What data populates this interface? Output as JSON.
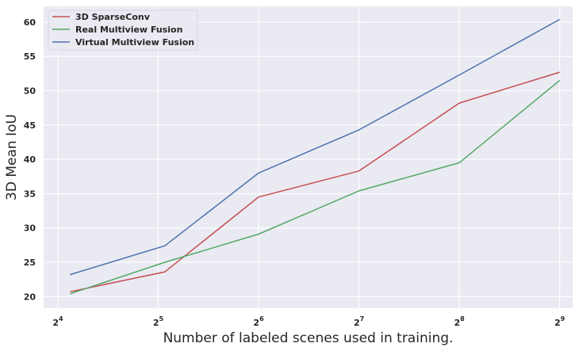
{
  "chart_data": {
    "type": "line",
    "title": "",
    "xlabel": "Number of labeled scenes used in training.",
    "ylabel": "3D Mean IoU",
    "x_scale": "log2",
    "x_tick_bases": [
      "2",
      "2",
      "2",
      "2",
      "2",
      "2"
    ],
    "x_tick_exponents": [
      "4",
      "5",
      "6",
      "7",
      "8",
      "9"
    ],
    "x_ticks": [
      16,
      32,
      64,
      128,
      256,
      512
    ],
    "y_ticks": [
      "20",
      "25",
      "30",
      "35",
      "40",
      "45",
      "50",
      "55",
      "60"
    ],
    "ylim": [
      18.3,
      62.3
    ],
    "xlim": [
      14.5,
      560
    ],
    "x": [
      17.4,
      33.5,
      64,
      128,
      256,
      512
    ],
    "grid": true,
    "legend_placement": "top-left",
    "series": [
      {
        "name": "3D SparseConv",
        "color": "#c44e52",
        "values": [
          20.7,
          23.6,
          34.5,
          38.3,
          48.2,
          52.7
        ]
      },
      {
        "name": "Real Multiview Fusion",
        "color": "#55a868",
        "values": [
          20.4,
          25.0,
          29.1,
          35.4,
          39.5,
          51.5
        ]
      },
      {
        "name": "Virtual Multiview Fusion",
        "color": "#4c72b0",
        "values": [
          23.2,
          27.4,
          38.0,
          44.3,
          52.3,
          60.4
        ]
      }
    ]
  }
}
